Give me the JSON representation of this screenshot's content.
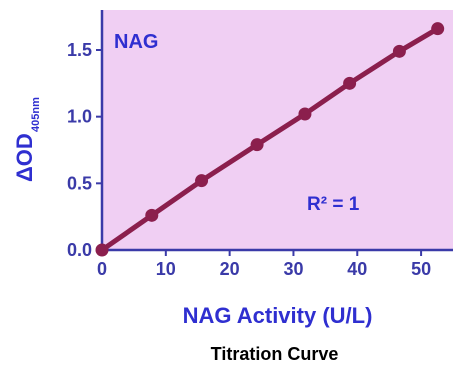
{
  "colors": {
    "plot_background": "#f0cff3",
    "axis": "#3a3aa8",
    "label": "#2f2fd0",
    "series": "#8b1f4d",
    "caption": "#000000"
  },
  "chart_data": {
    "type": "line",
    "series_label": "NAG",
    "ylabel_main": "ΔOD",
    "ylabel_sub": "405nm",
    "xlabel": "NAG Activity (U/L)",
    "caption": "Titration Curve",
    "annotation": "R² = 1",
    "xlim": [
      0,
      55
    ],
    "ylim": [
      0,
      1.8
    ],
    "x_ticks": [
      0,
      10,
      20,
      30,
      40,
      50
    ],
    "x_tick_labels": [
      "0",
      "10",
      "20",
      "30",
      "40",
      "50"
    ],
    "y_ticks": [
      0.0,
      0.5,
      1.0,
      1.5
    ],
    "y_tick_labels": [
      "0.0",
      "0.5",
      "1.0",
      "1.5"
    ],
    "grid": false,
    "series": [
      {
        "x": [
          0,
          7.8,
          15.6,
          24.3,
          31.8,
          38.8,
          46.6,
          52.6
        ],
        "y": [
          0.0,
          0.26,
          0.52,
          0.79,
          1.02,
          1.25,
          1.49,
          1.66
        ]
      }
    ]
  }
}
